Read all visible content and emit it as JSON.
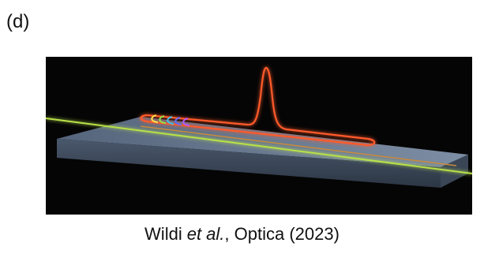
{
  "panel_label": "(d)",
  "caption": {
    "author": "Wildi",
    "etal": "et al.",
    "rest": ", Optica (2023)"
  }
}
